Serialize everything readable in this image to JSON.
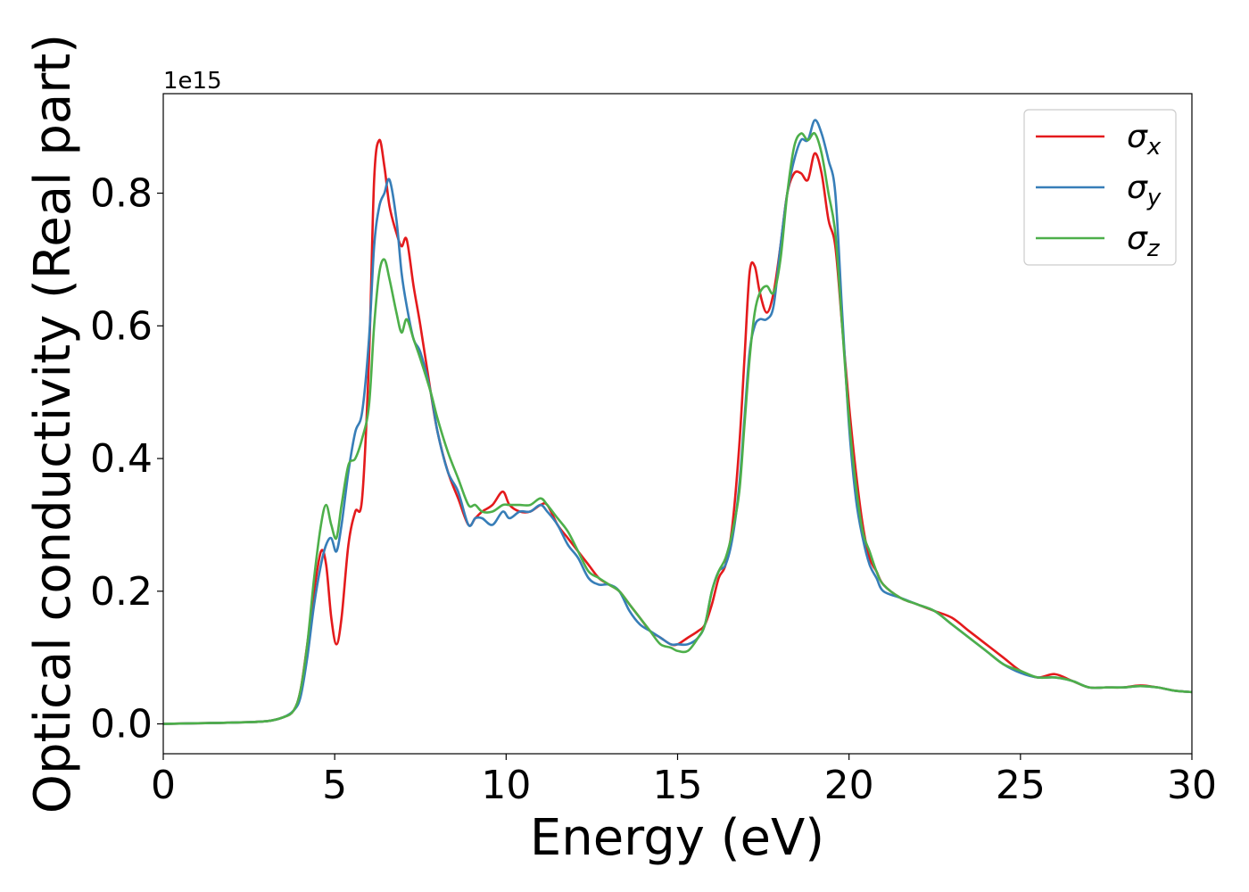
{
  "chart_data": {
    "type": "line",
    "title": "",
    "xlabel": "Energy (eV)",
    "ylabel": "Optical conductivity (Real part)",
    "y_offset_label": "1e15",
    "xlim": [
      0,
      30
    ],
    "ylim": [
      -0.045,
      0.95
    ],
    "xticks": [
      0,
      5,
      10,
      15,
      20,
      25,
      30
    ],
    "xtick_labels": [
      "0",
      "5",
      "10",
      "15",
      "20",
      "25",
      "30"
    ],
    "yticks": [
      0.0,
      0.2,
      0.4,
      0.6,
      0.8
    ],
    "ytick_labels": [
      "0.0",
      "0.2",
      "0.4",
      "0.6",
      "0.8"
    ],
    "grid": false,
    "legend_position": "top-right",
    "series": [
      {
        "name": "σx",
        "legend_main": "σ",
        "legend_sub": "x",
        "color": "#e41a1c",
        "x": [
          0,
          1,
          2,
          3,
          3.5,
          3.8,
          4.0,
          4.2,
          4.4,
          4.6,
          4.75,
          4.9,
          5.05,
          5.2,
          5.4,
          5.6,
          5.8,
          6.0,
          6.15,
          6.3,
          6.45,
          6.6,
          6.8,
          6.95,
          7.1,
          7.3,
          7.5,
          7.8,
          8.0,
          8.3,
          8.6,
          8.9,
          9.1,
          9.3,
          9.6,
          9.9,
          10.1,
          10.4,
          10.7,
          11.0,
          11.2,
          11.5,
          11.8,
          12.1,
          12.4,
          12.7,
          13.0,
          13.3,
          13.6,
          13.9,
          14.2,
          14.5,
          14.8,
          15.0,
          15.3,
          15.6,
          15.8,
          16.0,
          16.2,
          16.4,
          16.6,
          16.8,
          16.95,
          17.1,
          17.25,
          17.4,
          17.6,
          17.8,
          18.0,
          18.2,
          18.4,
          18.6,
          18.8,
          19.0,
          19.2,
          19.4,
          19.6,
          19.8,
          20.0,
          20.2,
          20.4,
          20.6,
          20.8,
          21.0,
          21.5,
          22.0,
          22.5,
          23.0,
          23.5,
          24.0,
          24.5,
          25.0,
          25.5,
          26.0,
          26.5,
          27.0,
          27.5,
          28.0,
          28.5,
          29.0,
          29.5,
          30.0
        ],
        "y": [
          0.0,
          0.001,
          0.002,
          0.004,
          0.01,
          0.02,
          0.05,
          0.12,
          0.2,
          0.26,
          0.24,
          0.16,
          0.12,
          0.16,
          0.27,
          0.32,
          0.34,
          0.55,
          0.82,
          0.88,
          0.84,
          0.78,
          0.74,
          0.72,
          0.73,
          0.66,
          0.6,
          0.5,
          0.44,
          0.38,
          0.34,
          0.3,
          0.31,
          0.32,
          0.33,
          0.35,
          0.33,
          0.32,
          0.32,
          0.33,
          0.33,
          0.3,
          0.28,
          0.26,
          0.24,
          0.22,
          0.21,
          0.2,
          0.18,
          0.16,
          0.14,
          0.13,
          0.12,
          0.12,
          0.13,
          0.14,
          0.15,
          0.18,
          0.22,
          0.24,
          0.3,
          0.42,
          0.55,
          0.68,
          0.69,
          0.65,
          0.62,
          0.65,
          0.72,
          0.8,
          0.83,
          0.83,
          0.82,
          0.86,
          0.83,
          0.76,
          0.72,
          0.6,
          0.48,
          0.38,
          0.3,
          0.25,
          0.23,
          0.21,
          0.19,
          0.18,
          0.17,
          0.16,
          0.14,
          0.12,
          0.1,
          0.08,
          0.07,
          0.075,
          0.065,
          0.055,
          0.055,
          0.055,
          0.058,
          0.055,
          0.05,
          0.048
        ]
      },
      {
        "name": "σy",
        "legend_main": "σ",
        "legend_sub": "y",
        "color": "#377eb8",
        "x": [
          0,
          1,
          2,
          3,
          3.5,
          3.8,
          4.0,
          4.2,
          4.4,
          4.6,
          4.75,
          4.9,
          5.05,
          5.2,
          5.4,
          5.6,
          5.8,
          6.0,
          6.15,
          6.3,
          6.45,
          6.6,
          6.8,
          6.95,
          7.1,
          7.3,
          7.5,
          7.8,
          8.0,
          8.3,
          8.6,
          8.9,
          9.1,
          9.3,
          9.6,
          9.9,
          10.1,
          10.4,
          10.7,
          11.0,
          11.2,
          11.5,
          11.8,
          12.1,
          12.4,
          12.7,
          13.0,
          13.3,
          13.6,
          13.9,
          14.2,
          14.5,
          14.8,
          15.0,
          15.3,
          15.6,
          15.8,
          16.0,
          16.2,
          16.4,
          16.6,
          16.8,
          16.95,
          17.1,
          17.25,
          17.4,
          17.6,
          17.8,
          18.0,
          18.2,
          18.4,
          18.6,
          18.8,
          19.0,
          19.2,
          19.4,
          19.6,
          19.8,
          20.0,
          20.2,
          20.4,
          20.6,
          20.8,
          21.0,
          21.5,
          22.0,
          22.5,
          23.0,
          23.5,
          24.0,
          24.5,
          25.0,
          25.5,
          26.0,
          26.5,
          27.0,
          27.5,
          28.0,
          28.5,
          29.0,
          29.5,
          30.0
        ],
        "y": [
          0.0,
          0.001,
          0.002,
          0.004,
          0.01,
          0.02,
          0.04,
          0.1,
          0.18,
          0.24,
          0.27,
          0.28,
          0.26,
          0.3,
          0.38,
          0.44,
          0.47,
          0.58,
          0.72,
          0.78,
          0.8,
          0.82,
          0.76,
          0.68,
          0.63,
          0.58,
          0.56,
          0.5,
          0.44,
          0.38,
          0.35,
          0.3,
          0.31,
          0.31,
          0.3,
          0.32,
          0.31,
          0.32,
          0.32,
          0.33,
          0.32,
          0.3,
          0.27,
          0.25,
          0.22,
          0.21,
          0.21,
          0.2,
          0.17,
          0.15,
          0.14,
          0.13,
          0.12,
          0.12,
          0.12,
          0.13,
          0.15,
          0.2,
          0.23,
          0.24,
          0.28,
          0.36,
          0.46,
          0.56,
          0.6,
          0.61,
          0.61,
          0.63,
          0.72,
          0.8,
          0.85,
          0.88,
          0.88,
          0.91,
          0.89,
          0.85,
          0.8,
          0.62,
          0.45,
          0.34,
          0.28,
          0.24,
          0.22,
          0.2,
          0.19,
          0.18,
          0.17,
          0.15,
          0.13,
          0.11,
          0.09,
          0.077,
          0.07,
          0.07,
          0.065,
          0.055,
          0.055,
          0.055,
          0.057,
          0.055,
          0.05,
          0.048
        ]
      },
      {
        "name": "σz",
        "legend_main": "σ",
        "legend_sub": "z",
        "color": "#4daf4a",
        "x": [
          0,
          1,
          2,
          3,
          3.5,
          3.8,
          4.0,
          4.2,
          4.4,
          4.6,
          4.75,
          4.9,
          5.05,
          5.2,
          5.4,
          5.6,
          5.8,
          6.0,
          6.15,
          6.3,
          6.45,
          6.6,
          6.8,
          6.95,
          7.1,
          7.3,
          7.5,
          7.8,
          8.0,
          8.3,
          8.6,
          8.9,
          9.1,
          9.3,
          9.6,
          9.9,
          10.1,
          10.4,
          10.7,
          11.0,
          11.2,
          11.5,
          11.8,
          12.1,
          12.4,
          12.7,
          13.0,
          13.3,
          13.6,
          13.9,
          14.2,
          14.5,
          14.8,
          15.0,
          15.3,
          15.6,
          15.8,
          16.0,
          16.2,
          16.4,
          16.6,
          16.8,
          16.95,
          17.1,
          17.25,
          17.4,
          17.6,
          17.8,
          18.0,
          18.2,
          18.4,
          18.6,
          18.8,
          19.0,
          19.2,
          19.4,
          19.6,
          19.8,
          20.0,
          20.2,
          20.4,
          20.6,
          20.8,
          21.0,
          21.5,
          22.0,
          22.5,
          23.0,
          23.5,
          24.0,
          24.5,
          25.0,
          25.5,
          26.0,
          26.5,
          27.0,
          27.5,
          28.0,
          28.5,
          29.0,
          29.5,
          30.0
        ],
        "y": [
          0.0,
          0.001,
          0.002,
          0.004,
          0.01,
          0.02,
          0.05,
          0.12,
          0.22,
          0.3,
          0.33,
          0.3,
          0.28,
          0.33,
          0.39,
          0.4,
          0.43,
          0.48,
          0.6,
          0.68,
          0.7,
          0.67,
          0.62,
          0.59,
          0.61,
          0.58,
          0.55,
          0.5,
          0.46,
          0.41,
          0.37,
          0.33,
          0.33,
          0.32,
          0.32,
          0.33,
          0.33,
          0.33,
          0.33,
          0.34,
          0.33,
          0.31,
          0.29,
          0.26,
          0.23,
          0.22,
          0.21,
          0.2,
          0.18,
          0.16,
          0.14,
          0.12,
          0.115,
          0.11,
          0.11,
          0.13,
          0.15,
          0.2,
          0.23,
          0.25,
          0.29,
          0.35,
          0.45,
          0.55,
          0.62,
          0.65,
          0.66,
          0.65,
          0.7,
          0.8,
          0.87,
          0.89,
          0.88,
          0.89,
          0.86,
          0.8,
          0.74,
          0.6,
          0.46,
          0.36,
          0.29,
          0.26,
          0.23,
          0.21,
          0.19,
          0.18,
          0.17,
          0.15,
          0.13,
          0.11,
          0.09,
          0.08,
          0.07,
          0.07,
          0.065,
          0.055,
          0.055,
          0.055,
          0.057,
          0.055,
          0.05,
          0.048
        ]
      }
    ]
  }
}
